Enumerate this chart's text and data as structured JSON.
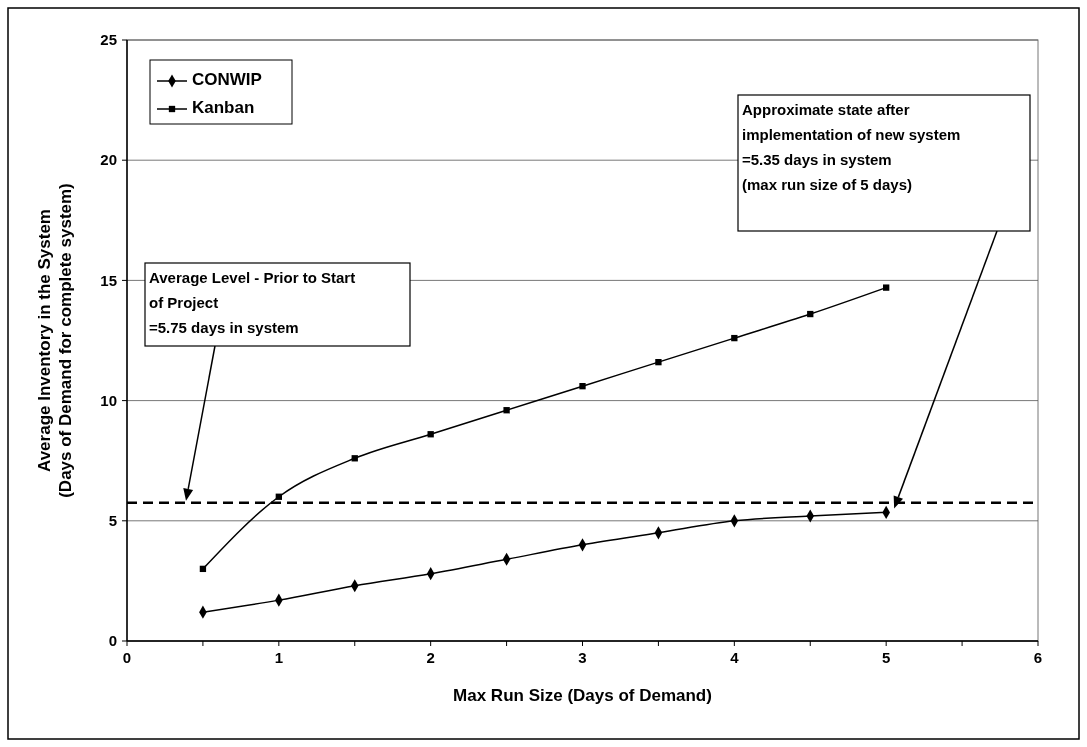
{
  "chart_data": {
    "type": "line",
    "xlabel": "Max Run Size (Days of Demand)",
    "ylabel": "Average Inventory in the System\n(Days of Demand for complete system)",
    "x": [
      0.5,
      1,
      1.5,
      2,
      2.5,
      3,
      3.5,
      4,
      4.5,
      5
    ],
    "series": [
      {
        "name": "CONWIP",
        "color": "#000000",
        "marker": "diamond",
        "values": [
          1.2,
          1.7,
          2.3,
          2.8,
          3.4,
          4.0,
          4.5,
          5.0,
          5.2,
          5.35
        ]
      },
      {
        "name": "Kanban",
        "color": "#000000",
        "marker": "square",
        "values": [
          3.0,
          6.0,
          7.6,
          8.6,
          9.6,
          10.6,
          11.6,
          12.6,
          13.6,
          14.7
        ]
      }
    ],
    "xlim": [
      0,
      6
    ],
    "ylim": [
      0,
      25
    ],
    "xticks": [
      0,
      {
        "value": 0.5,
        "label": null
      },
      1,
      {
        "value": 1.5,
        "label": null
      },
      2,
      {
        "value": 2.5,
        "label": null
      },
      3,
      {
        "value": 3.5,
        "label": null
      },
      4,
      {
        "value": 4.5,
        "label": null
      },
      5,
      {
        "value": 5.5,
        "label": null
      },
      6
    ],
    "yticks": [
      0,
      5,
      10,
      15,
      20,
      25
    ],
    "grid": "y",
    "legend": "top left",
    "ref_lines": [
      {
        "axis": "y",
        "value": 5.75,
        "color": "#000000",
        "line_style": "dashed"
      }
    ],
    "annotations": [
      "Average Level - Prior to Start\nof Project\n=5.75 days in system",
      "Approximate state after\nimplementation of new system\n=5.35 days in system\n(max run size of 5 days)"
    ]
  }
}
